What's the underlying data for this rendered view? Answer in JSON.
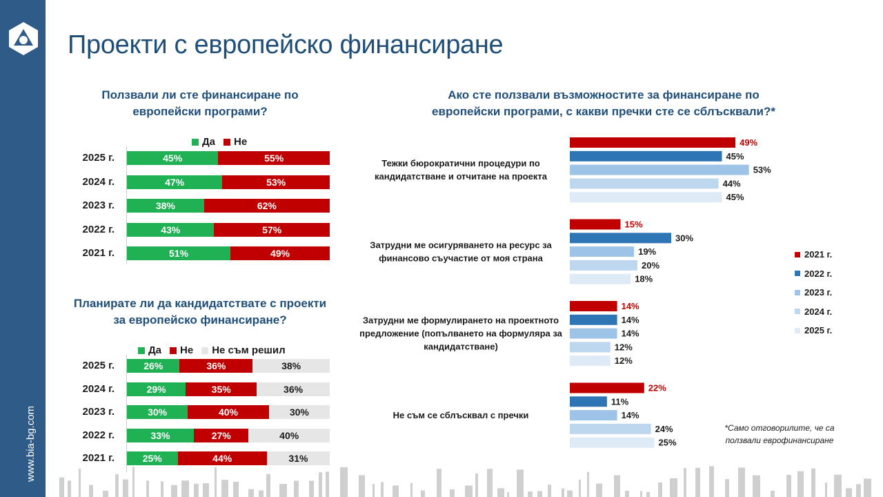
{
  "site": "www.bia-bg.com",
  "title": "Проекти с европейско финансиране",
  "colors": {
    "yes": "#1fb154",
    "no": "#c00000",
    "undecided": "#e6e6e6",
    "y2021": "#c00000",
    "y2022": "#2e75b6",
    "y2023": "#9dc3e6",
    "y2024": "#bdd7ee",
    "y2025": "#deebf7",
    "title": "#1f4e79",
    "sidebar": "#2e5b87"
  },
  "chart_data": [
    {
      "type": "bar",
      "orientation": "horizontal-stacked-100",
      "title": "Ползвали ли сте финансиране по европейски програми?",
      "categories": [
        "2025 г.",
        "2024 г.",
        "2023 г.",
        "2022 г.",
        "2021 г."
      ],
      "series": [
        {
          "name": "Да",
          "values": [
            45,
            47,
            38,
            43,
            51
          ]
        },
        {
          "name": "Не",
          "values": [
            55,
            53,
            62,
            57,
            49
          ]
        }
      ]
    },
    {
      "type": "bar",
      "orientation": "horizontal-stacked-100",
      "title": "Планирате ли да кандидатствате с проекти за европейско финансиране?",
      "categories": [
        "2025 г.",
        "2024 г.",
        "2023 г.",
        "2022 г.",
        "2021 г."
      ],
      "series": [
        {
          "name": "Да",
          "values": [
            26,
            29,
            30,
            33,
            25
          ]
        },
        {
          "name": "Не",
          "values": [
            36,
            35,
            40,
            27,
            44
          ]
        },
        {
          "name": "Не съм решил",
          "values": [
            38,
            36,
            30,
            40,
            31
          ]
        }
      ]
    },
    {
      "type": "bar",
      "orientation": "horizontal-grouped",
      "title": "Ако сте ползвали възможностите за финансиране по европейски програми, с какви пречки сте се сблъсквали?*",
      "note": "*Само отговорилите, че са ползвали еврофинансиране",
      "years": [
        "2021 г.",
        "2022 г.",
        "2023 г.",
        "2024 г.",
        "2025 г."
      ],
      "groups": [
        {
          "label": "Тежки бюрократични процедури по кандидатстване и отчитане на проекта",
          "values": [
            49,
            45,
            53,
            44,
            45
          ]
        },
        {
          "label": "Затрудни ме осигуряването на ресурс за финансово съучастие от моя страна",
          "values": [
            15,
            30,
            19,
            20,
            18
          ]
        },
        {
          "label": "Затрудни ме формулирането на проектното предложение (попълването на формуляра за кандидатстване)",
          "values": [
            14,
            14,
            14,
            12,
            12
          ]
        },
        {
          "label": "Не съм се сблъсквал с пречки",
          "values": [
            22,
            11,
            14,
            24,
            25
          ]
        }
      ],
      "xlim": [
        0,
        55
      ]
    }
  ]
}
